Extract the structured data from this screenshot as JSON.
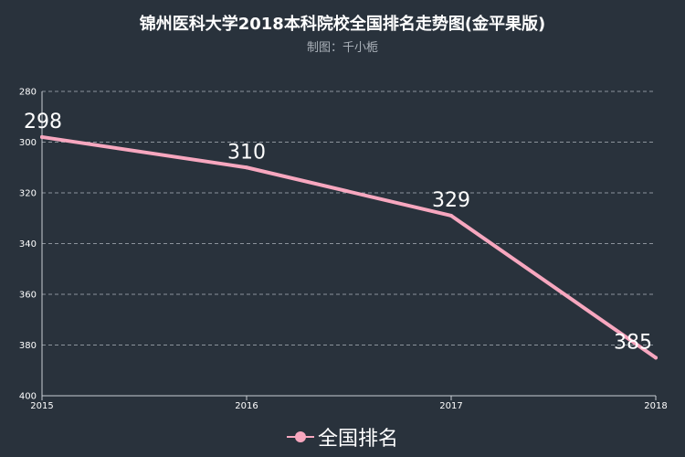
{
  "chart_data": {
    "type": "line",
    "title": "锦州医科大学2018本科院校全国排名走势图(金平果版)",
    "subtitle": "制图：千小栀",
    "x": [
      "2015",
      "2016",
      "2017",
      "2018"
    ],
    "series": [
      {
        "name": "全国排名",
        "values": [
          298,
          310,
          329,
          385
        ]
      }
    ],
    "ylim": [
      280,
      400
    ],
    "y_inverted": true,
    "y_ticks": [
      280,
      300,
      320,
      340,
      360,
      380,
      400
    ],
    "grid": "horizontal-dashed",
    "legend_position": "bottom-center",
    "colors": {
      "line": "#f7a7bf",
      "background": "#29323c",
      "grid": "#8c939b",
      "text": "#ffffff"
    }
  }
}
